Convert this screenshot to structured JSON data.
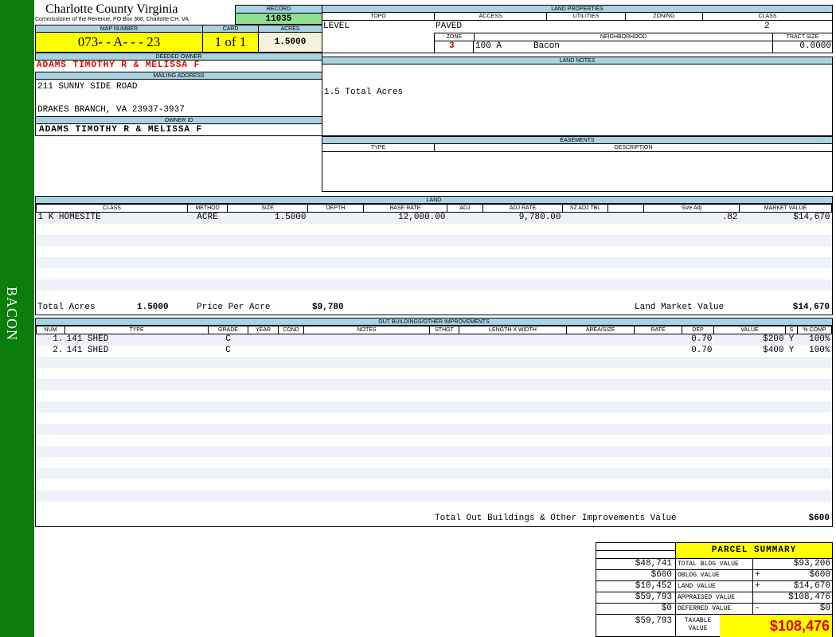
{
  "sidebar": {
    "label": "BACON",
    "color": "#0a7d0a"
  },
  "header": {
    "title": "Charlotte County Virginia",
    "subtitle": "Commissioner of the Revenue, PO Box 308, Charlotte CH, VA",
    "record_label": "RECORD",
    "record": "11035",
    "map_number_label": "MAP NUMBER",
    "map_number": "073- - A- - - 23",
    "card_label": "CARD",
    "card": "1 of 1",
    "acres_label": "ACRES",
    "acres": "1.5000"
  },
  "owner": {
    "deeded_label": "DEEDED OWNER",
    "deeded": "ADAMS TIMOTHY R & MELISSA F",
    "mailing_label": "MAILING ADDRESS",
    "address1": "211 SUNNY SIDE ROAD",
    "address2": "DRAKES BRANCH, VA 23937-3937",
    "owner_id_label": "OWNER ID",
    "owner_id": "ADAMS TIMOTHY R & MELISSA F"
  },
  "land_properties": {
    "label": "LAND PROPERTIES",
    "topo_label": "TOPO",
    "access_label": "ACCESS",
    "utilities_label": "UTILITIES",
    "zoning_label": "ZONING",
    "class_label": "CLASS",
    "topo": "LEVEL",
    "access": "PAVED",
    "class": "2",
    "zone_label": "ZONE",
    "neighborhood_label": "NEIGHBORHOOD",
    "tract_label": "TRACT SIZE",
    "zone": "3",
    "neighborhood_code": "100 A",
    "neighborhood": "Bacon",
    "tract_size": "0.0000"
  },
  "land_notes": {
    "label": "LAND NOTES",
    "text": "1.5 Total Acres"
  },
  "easements": {
    "label": "EASEMENTS",
    "type_label": "TYPE",
    "description_label": "DESCRIPTION"
  },
  "land": {
    "label": "LAND",
    "columns": [
      "CLASS",
      "METHOD",
      "SIZE",
      "DEPTH",
      "BASE RATE",
      "ADJ",
      "ADJ RATE",
      "SZ ADJ TBL",
      "",
      "Size Adj",
      "MARKET VALUE"
    ],
    "rows": [
      [
        "1 K HOMESITE",
        "ACRE",
        "1.5000",
        "",
        "12,000.00",
        "",
        "9,780.00",
        "",
        "",
        ".82",
        "$14,670"
      ]
    ],
    "total_acres_label": "Total Acres",
    "total_acres": "1.5000",
    "price_label": "Price Per Acre",
    "price": "$9,780",
    "market_label": "Land Market Value",
    "market": "$14,670"
  },
  "outbuildings": {
    "label": "OUT BUILDINGS/OTHER IMPROVEMENTS",
    "columns": [
      "NUM",
      "TYPE",
      "GRADE",
      "YEAR",
      "COND",
      "NOTES",
      "STHGT",
      "LENGTH X WIDTH",
      "AREA/SIZE",
      "RATE",
      "DEP",
      "VALUE",
      "S",
      "% COMP"
    ],
    "rows": [
      [
        "1.",
        "141 SHED",
        "C",
        "",
        "",
        "",
        "",
        "",
        "",
        "",
        "0.70",
        "$200",
        "Y",
        "100%"
      ],
      [
        "2.",
        "141 SHED",
        "C",
        "",
        "",
        "",
        "",
        "",
        "",
        "",
        "0.70",
        "$400",
        "Y",
        "100%"
      ]
    ],
    "total_label": "Total Out Buildings & Other Improvements Value",
    "total": "$600"
  },
  "summary": {
    "title": "PARCEL SUMMARY",
    "rows": [
      {
        "left": "$48,741",
        "label": "TOTAL BLDG VALUE",
        "sign": "",
        "value": "$93,206"
      },
      {
        "left": "$600",
        "label": "OBLDG VALUE",
        "sign": "+",
        "value": "$600"
      },
      {
        "left": "$10,452",
        "label": "LAND VALUE",
        "sign": "+",
        "value": "$14,670"
      },
      {
        "left": "$59,793",
        "label": "APPRAISED VALUE",
        "sign": "",
        "value": "$108,476"
      },
      {
        "left": "$0",
        "label": "DEFERRED VALUE",
        "sign": "-",
        "value": "$0"
      }
    ],
    "taxable_left": "$59,793",
    "taxable_label": "TAXABLE VALUE",
    "taxable": "$108,476"
  }
}
